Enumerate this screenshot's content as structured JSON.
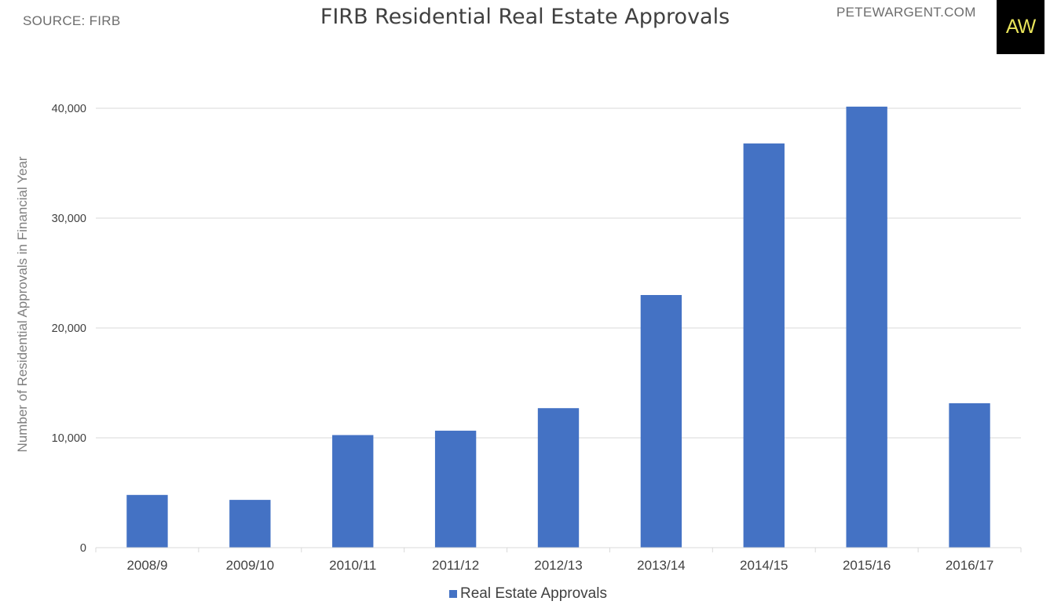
{
  "header": {
    "source": "SOURCE: FIRB",
    "title": "FIRB Residential Real Estate Approvals",
    "site": "PETEWARGENT.COM",
    "logo": "AW"
  },
  "colors": {
    "bar": "#4472c4",
    "grid": "#d9d9d9",
    "logo_bg": "#000000",
    "logo_fg": "#e8e35a"
  },
  "chart_data": {
    "type": "bar",
    "title": "FIRB Residential Real Estate Approvals",
    "xlabel": "",
    "ylabel": "Number of Residential Approvals in Financial Year",
    "categories": [
      "2008/9",
      "2009/10",
      "2010/11",
      "2011/12",
      "2012/13",
      "2013/14",
      "2014/15",
      "2015/16",
      "2016/17"
    ],
    "series": [
      {
        "name": "Real Estate Approvals",
        "values": [
          4800,
          4350,
          10250,
          10650,
          12700,
          23000,
          36800,
          40150,
          13150
        ]
      }
    ],
    "ylim": [
      0,
      40000
    ],
    "yticks": [
      0,
      10000,
      20000,
      30000,
      40000
    ],
    "ytick_labels": [
      "0",
      "10,000",
      "20,000",
      "30,000",
      "40,000"
    ],
    "grid": true,
    "legend_position": "bottom"
  }
}
